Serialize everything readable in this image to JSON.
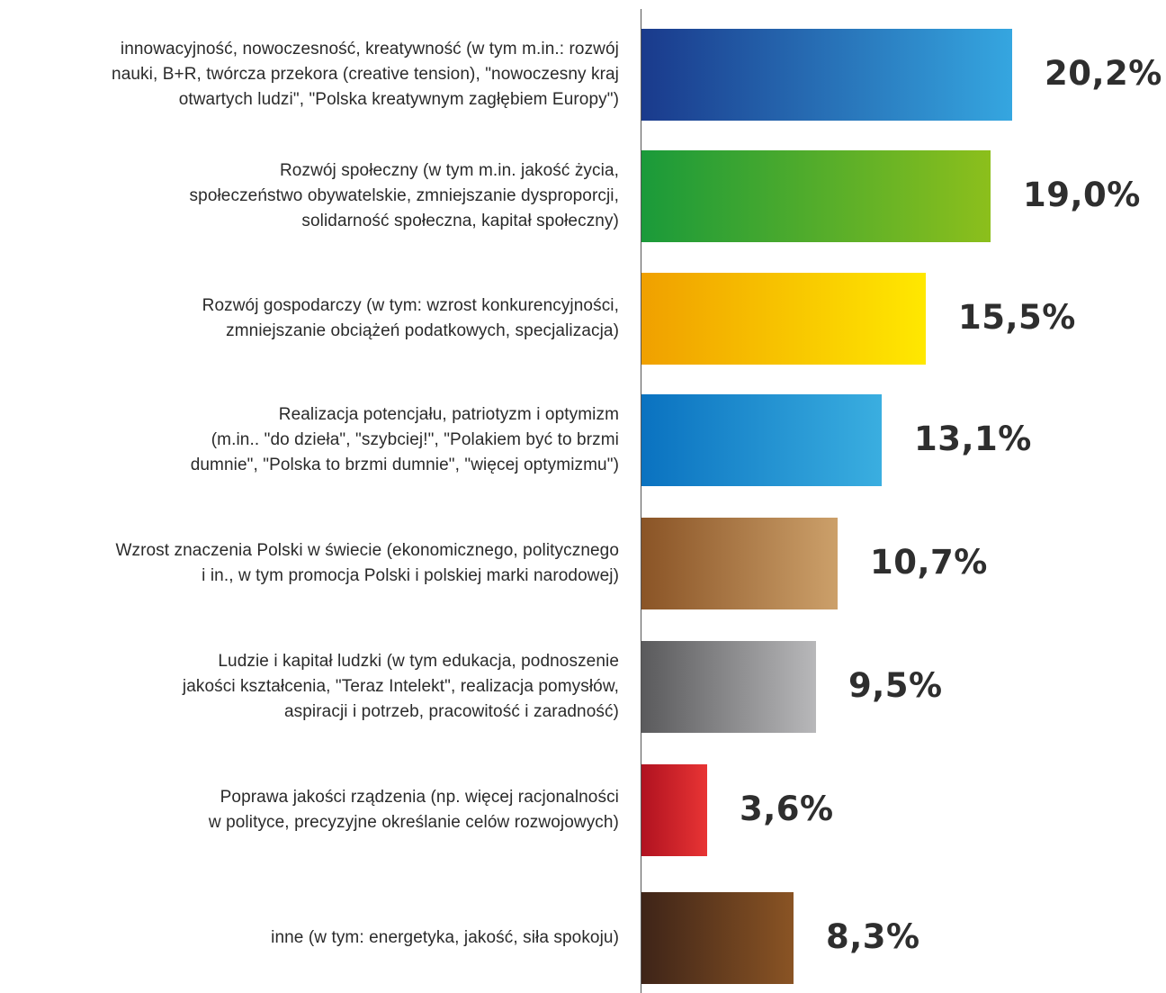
{
  "chart_data": {
    "type": "bar",
    "orientation": "horizontal",
    "categories": [
      "innowacyjność, nowoczesność, kreatywność (w tym m.in.: rozwój\nnauki, B+R, twórcza przekora (creative tension), \"nowoczesny kraj\notwartych ludzi\", \"Polska kreatywnym zagłębiem Europy\")",
      "Rozwój społeczny (w tym m.in. jakość życia,\nspołeczeństwo obywatelskie, zmniejszanie dysproporcji,\nsolidarność społeczna, kapitał społeczny)",
      "Rozwój gospodarczy (w tym: wzrost konkurencyjności,\nzmniejszanie obciążeń podatkowych, specjalizacja)",
      "Realizacja potencjału, patriotyzm i optymizm\n(m.in.. \"do dzieła\", \"szybciej!\", \"Polakiem być to brzmi\ndumnie\", \"Polska to brzmi dumnie\", \"więcej optymizmu\")",
      "Wzrost znaczenia Polski w świecie (ekonomicznego, politycznego\ni in., w tym promocja Polski i polskiej marki narodowej)",
      "Ludzie i kapitał ludzki (w tym edukacja, podnoszenie\njakości kształcenia, \"Teraz Intelekt\", realizacja pomysłów,\naspiracji i potrzeb, pracowitość i zaradność)",
      "Poprawa jakości rządzenia (np. więcej racjonalności\nw polityce, precyzyjne określanie celów rozwojowych)",
      "inne (w tym: energetyka, jakość, siła spokoju)"
    ],
    "values": [
      20.2,
      19.0,
      15.5,
      13.1,
      10.7,
      9.5,
      3.6,
      8.3
    ],
    "value_labels": [
      "20,2%",
      "19,0%",
      "15,5%",
      "13,1%",
      "10,7%",
      "9,5%",
      "3,6%",
      "8,3%"
    ],
    "unit": "%",
    "colors": [
      [
        "#1a3a8c",
        "#35a6e0"
      ],
      [
        "#1a9a3a",
        "#8cbf1c"
      ],
      [
        "#f0a000",
        "#ffe800"
      ],
      [
        "#0a72c0",
        "#3aaee0"
      ],
      [
        "#8a5426",
        "#cca06a"
      ],
      [
        "#5a5a5c",
        "#b8b8ba"
      ],
      [
        "#b01220",
        "#e83434"
      ],
      [
        "#3e2418",
        "#8a5424"
      ]
    ],
    "title": "",
    "xlabel": "",
    "ylabel": "",
    "xlim": [
      0,
      20.2
    ],
    "grid": false,
    "legend": "none"
  }
}
